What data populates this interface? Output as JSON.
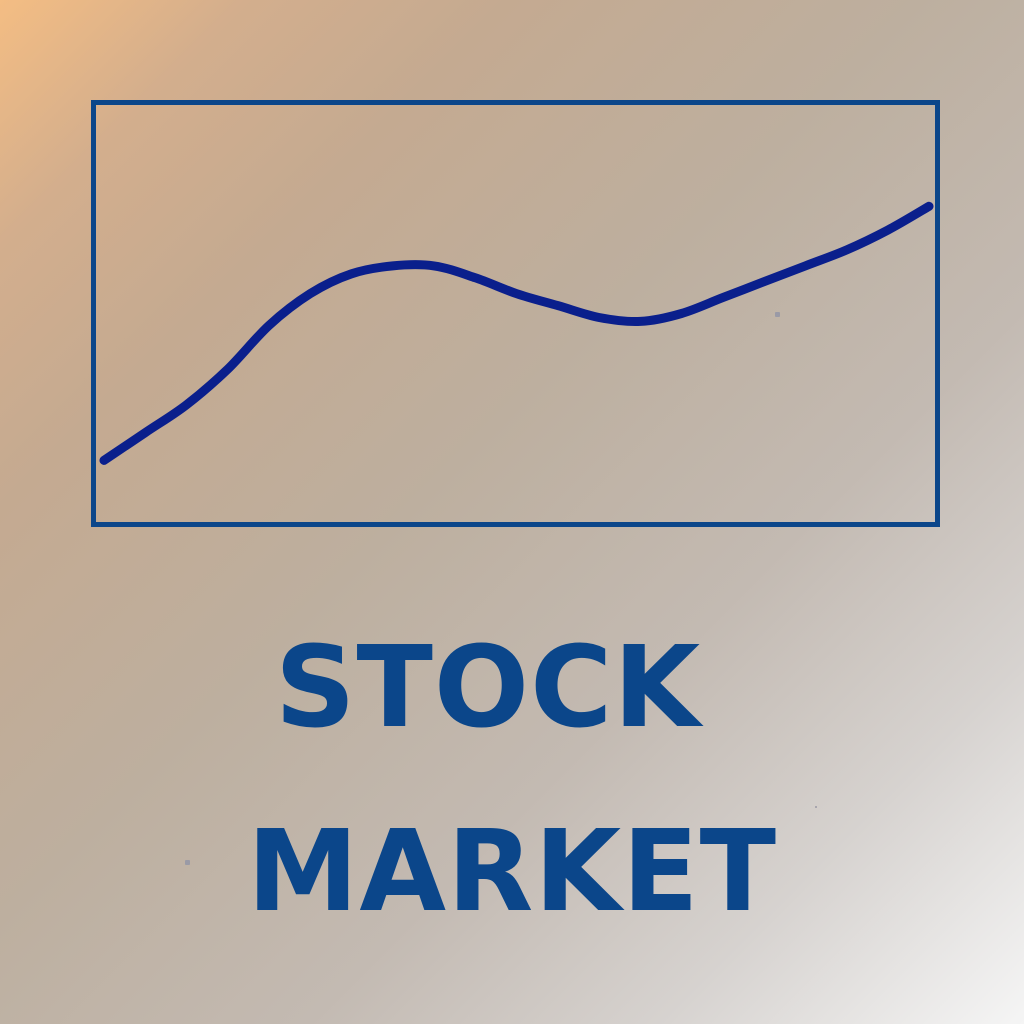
{
  "title": {
    "line1": "STOCK",
    "line2": "MARKET"
  },
  "icons": {
    "chart": "line-chart-icon"
  },
  "colors": {
    "primary": "#0b468a",
    "line": "#0a1f8c",
    "gradient_start": "#f4bd83",
    "gradient_end": "#f5f5f5"
  },
  "chart_data": {
    "type": "line",
    "x": [
      0,
      0.05,
      0.1,
      0.15,
      0.2,
      0.25,
      0.3,
      0.35,
      0.4,
      0.45,
      0.5,
      0.55,
      0.6,
      0.65,
      0.7,
      0.75,
      0.8,
      0.85,
      0.9,
      0.95,
      1
    ],
    "y": [
      0.13,
      0.2,
      0.27,
      0.36,
      0.47,
      0.55,
      0.6,
      0.62,
      0.62,
      0.59,
      0.55,
      0.52,
      0.49,
      0.48,
      0.5,
      0.54,
      0.58,
      0.62,
      0.66,
      0.71,
      0.77
    ],
    "xlim": [
      0,
      1
    ],
    "ylim": [
      0,
      1
    ],
    "grid": false,
    "title": "",
    "xlabel": "",
    "ylabel": ""
  }
}
